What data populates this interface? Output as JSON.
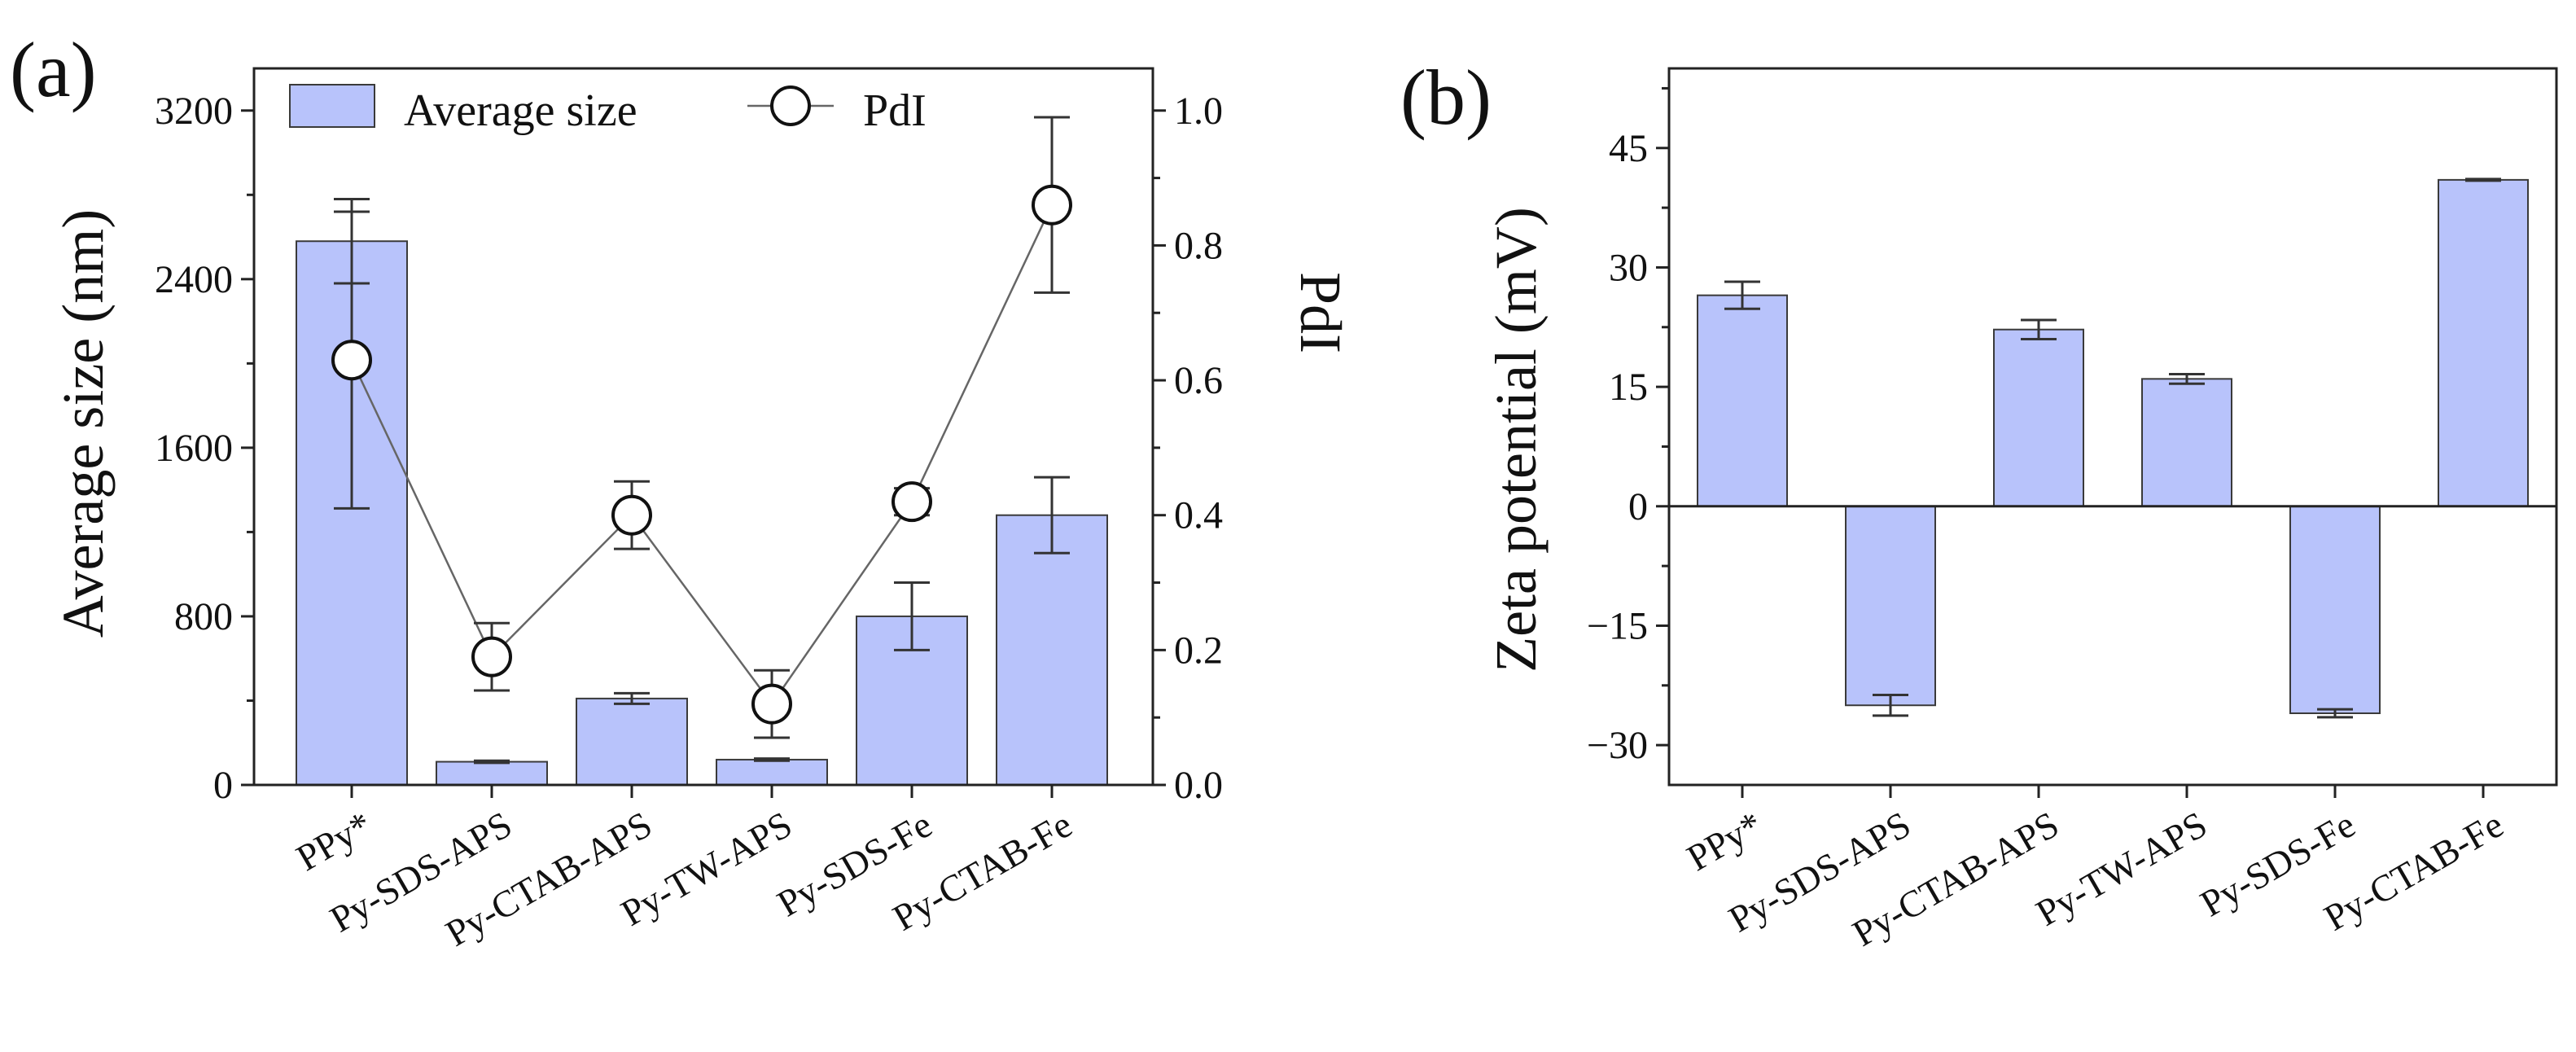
{
  "colors": {
    "bar": "#b8c3fb",
    "bar_edge": "#3a3a3a",
    "point_fill": "#ffffff"
  },
  "chart_data": [
    {
      "panel": "(a)",
      "type": "bar",
      "categories": [
        "PPy*",
        "Py-SDS-APS",
        "Py-CTAB-APS",
        "Py-TW-APS",
        "Py-SDS-Fe",
        "Py-CTAB-Fe"
      ],
      "ylabel": "Average size (nm)",
      "y2label": "PdI",
      "ylim": [
        0,
        3400
      ],
      "y2lim": [
        0,
        1.0625
      ],
      "yticks": [
        0,
        800,
        1600,
        2400,
        3200
      ],
      "y2ticks": [
        "0.0",
        "0.2",
        "0.4",
        "0.6",
        "0.8",
        "1.0"
      ],
      "legend_position": "top-left",
      "legend": {
        "bars": "Average size",
        "line": "PdI"
      },
      "series": [
        {
          "name": "Average size",
          "kind": "bar",
          "axis": "left",
          "values": [
            2580,
            110,
            410,
            120,
            800,
            1280
          ],
          "errors": [
            200,
            5,
            25,
            5,
            160,
            180
          ]
        },
        {
          "name": "PdI",
          "kind": "line",
          "axis": "right",
          "values": [
            0.63,
            0.19,
            0.4,
            0.12,
            0.42,
            0.86
          ],
          "errors": [
            0.22,
            0.05,
            0.05,
            0.05,
            0.02,
            0.13
          ]
        }
      ]
    },
    {
      "panel": "(b)",
      "type": "bar",
      "categories": [
        "PPy*",
        "Py-SDS-APS",
        "Py-CTAB-APS",
        "Py-TW-APS",
        "Py-SDS-Fe",
        "Py-CTAB-Fe"
      ],
      "ylabel": "Zeta potential (mV)",
      "ylim": [
        -35,
        55
      ],
      "yticks": [
        "-30",
        "-15",
        "0",
        "15",
        "30",
        "45"
      ],
      "series": [
        {
          "name": "Zeta potential",
          "values": [
            26.5,
            -25,
            22.2,
            16,
            -26,
            41
          ],
          "errors": [
            1.7,
            1.3,
            1.2,
            0.6,
            0.5,
            0.1
          ]
        }
      ]
    }
  ]
}
